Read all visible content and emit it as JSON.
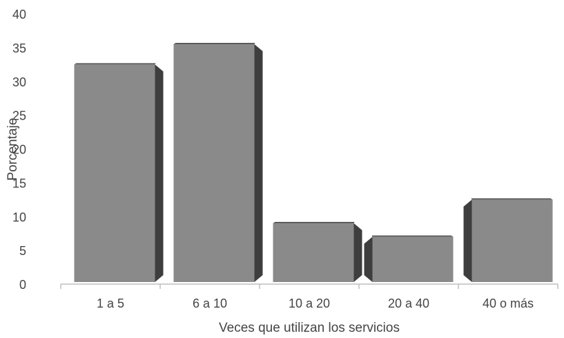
{
  "chart_data": {
    "type": "bar",
    "categories": [
      "1 a 5",
      "6 a 10",
      "10 a 20",
      "20 a 40",
      "40 o más"
    ],
    "values": [
      32.5,
      35.5,
      9,
      7,
      12.5
    ],
    "xlabel": "Veces que utilizan los servicios",
    "ylabel": "Porcentaje",
    "ylim": [
      0,
      40
    ],
    "yticks": [
      0,
      5,
      10,
      15,
      20,
      25,
      30,
      35,
      40
    ],
    "grid": false,
    "legend": "none",
    "colors": {
      "bar_front": "#8a8a8a",
      "bar_side": "#3e3e3e",
      "bar_top": "#5a5a5a",
      "axis": "#bfbfbf",
      "text": "#444444"
    }
  }
}
